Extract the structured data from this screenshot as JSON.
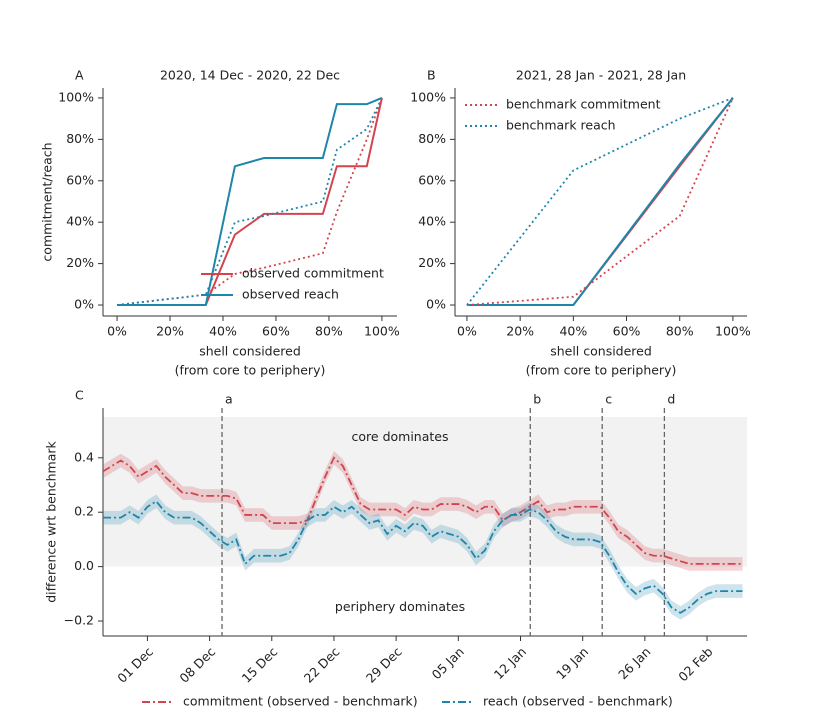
{
  "chart_data": [
    {
      "type": "line",
      "panel": "A",
      "title": "2020, 14 Dec - 2020, 22 Dec",
      "ylabel": "commitment/reach",
      "xlabel": [
        "shell considered",
        "(from core to periphery)"
      ],
      "x": [
        0,
        33.5,
        44.5,
        55.5,
        77.7,
        83,
        94.3,
        100
      ],
      "series": [
        {
          "name": "observed commitment",
          "color": "#d2454f",
          "style": "solid",
          "in_legend": true,
          "values": [
            0,
            0,
            34,
            44,
            44,
            67,
            67,
            100
          ]
        },
        {
          "name": "observed reach",
          "color": "#1f86ab",
          "style": "solid",
          "in_legend": true,
          "values": [
            0,
            0,
            67,
            71,
            71,
            97,
            97,
            100
          ]
        },
        {
          "name": "benchmark commitment",
          "color": "#d2454f",
          "style": "dotted",
          "in_legend": false,
          "values": [
            0,
            5,
            15,
            18,
            25,
            45,
            80,
            100
          ]
        },
        {
          "name": "benchmark reach",
          "color": "#1f86ab",
          "style": "dotted",
          "in_legend": false,
          "values": [
            0,
            5,
            40,
            43,
            50,
            75,
            85,
            100
          ]
        }
      ],
      "xlim": [
        -5.3,
        105.7
      ],
      "ylim": [
        -5.3,
        104.8
      ],
      "xticks": [
        {
          "value": 0,
          "label": "0%"
        },
        {
          "value": 20,
          "label": "20%"
        },
        {
          "value": 40,
          "label": "40%"
        },
        {
          "value": 60,
          "label": "60%"
        },
        {
          "value": 80,
          "label": "80%"
        },
        {
          "value": 100,
          "label": "100%"
        }
      ],
      "yticks": [
        {
          "value": 0,
          "label": "0%"
        },
        {
          "value": 20,
          "label": "20%"
        },
        {
          "value": 40,
          "label": "40%"
        },
        {
          "value": 60,
          "label": "60%"
        },
        {
          "value": 80,
          "label": "80%"
        },
        {
          "value": 100,
          "label": "100%"
        }
      ],
      "legend": "lower right"
    },
    {
      "type": "line",
      "panel": "B",
      "title": "2021, 28 Jan - 2021, 28 Jan",
      "xlabel": [
        "shell considered",
        "(from core to periphery)"
      ],
      "x": [
        0,
        40,
        80,
        100
      ],
      "series": [
        {
          "name": "observed commitment",
          "color": "#d2454f",
          "style": "solid",
          "in_legend": false,
          "values": [
            0,
            0,
            67,
            100
          ]
        },
        {
          "name": "observed reach",
          "color": "#1f86ab",
          "style": "solid",
          "in_legend": false,
          "values": [
            0,
            0,
            68,
            100
          ]
        },
        {
          "name": "benchmark commitment",
          "color": "#d2454f",
          "style": "dotted",
          "in_legend": true,
          "values": [
            0,
            4,
            43,
            100
          ]
        },
        {
          "name": "benchmark reach",
          "color": "#1f86ab",
          "style": "dotted",
          "in_legend": true,
          "values": [
            0,
            65,
            90,
            100
          ]
        }
      ],
      "xlim": [
        -4.5,
        105.3
      ],
      "ylim": [
        -5.3,
        104.8
      ],
      "xticks": [
        {
          "value": 0,
          "label": "0%"
        },
        {
          "value": 20,
          "label": "20%"
        },
        {
          "value": 40,
          "label": "40%"
        },
        {
          "value": 60,
          "label": "60%"
        },
        {
          "value": 80,
          "label": "80%"
        },
        {
          "value": 100,
          "label": "100%"
        }
      ],
      "yticks": [
        {
          "value": 0,
          "label": "0%"
        },
        {
          "value": 20,
          "label": "20%"
        },
        {
          "value": 40,
          "label": "40%"
        },
        {
          "value": 60,
          "label": "60%"
        },
        {
          "value": 80,
          "label": "80%"
        },
        {
          "value": 100,
          "label": "100%"
        }
      ],
      "legend": "upper left"
    },
    {
      "type": "line",
      "panel": "C",
      "ylabel": "difference wrt benchmark",
      "x": [
        0,
        1,
        2,
        3,
        4,
        5,
        6,
        7,
        8,
        9,
        10,
        11,
        12,
        13,
        14,
        15,
        16,
        17,
        18,
        19,
        20,
        21,
        22,
        23,
        24,
        25,
        26,
        27,
        28,
        29,
        30,
        31,
        32,
        33,
        34,
        35,
        36,
        37,
        38,
        39,
        40,
        41,
        42,
        43,
        44,
        45,
        46,
        47,
        48,
        49,
        50,
        51,
        52,
        53,
        54,
        55,
        56,
        57,
        58,
        59,
        60,
        61,
        62,
        63,
        64,
        65,
        66,
        67,
        68,
        69,
        70,
        71,
        72
      ],
      "series": [
        {
          "name": "commitment (observed - benchmark)",
          "color": "#d2454f",
          "style": "dashdot",
          "in_legend": true,
          "band": 0.025,
          "values": [
            0.35,
            0.37,
            0.39,
            0.37,
            0.33,
            0.35,
            0.37,
            0.33,
            0.3,
            0.27,
            0.27,
            0.26,
            0.26,
            0.26,
            0.26,
            0.25,
            0.19,
            0.19,
            0.19,
            0.16,
            0.16,
            0.16,
            0.16,
            0.17,
            0.25,
            0.33,
            0.4,
            0.37,
            0.3,
            0.23,
            0.21,
            0.21,
            0.21,
            0.21,
            0.19,
            0.22,
            0.21,
            0.21,
            0.23,
            0.23,
            0.23,
            0.22,
            0.2,
            0.22,
            0.22,
            0.17,
            0.19,
            0.2,
            0.22,
            0.24,
            0.2,
            0.21,
            0.21,
            0.22,
            0.22,
            0.22,
            0.22,
            0.18,
            0.13,
            0.11,
            0.08,
            0.05,
            0.04,
            0.04,
            0.03,
            0.02,
            0.01,
            0.01,
            0.01,
            0.01,
            0.01,
            0.01,
            0.01
          ]
        },
        {
          "name": "reach (observed - benchmark)",
          "color": "#1f86ab",
          "style": "dashdot",
          "in_legend": true,
          "band": 0.025,
          "values": [
            0.18,
            0.18,
            0.18,
            0.2,
            0.18,
            0.22,
            0.24,
            0.2,
            0.18,
            0.18,
            0.18,
            0.16,
            0.13,
            0.1,
            0.08,
            0.1,
            0.01,
            0.04,
            0.04,
            0.04,
            0.04,
            0.05,
            0.1,
            0.17,
            0.19,
            0.19,
            0.22,
            0.2,
            0.22,
            0.19,
            0.16,
            0.17,
            0.12,
            0.15,
            0.13,
            0.16,
            0.15,
            0.11,
            0.13,
            0.12,
            0.11,
            0.08,
            0.03,
            0.06,
            0.13,
            0.17,
            0.19,
            0.19,
            0.21,
            0.2,
            0.17,
            0.13,
            0.11,
            0.1,
            0.1,
            0.1,
            0.09,
            0.04,
            -0.02,
            -0.07,
            -0.1,
            -0.08,
            -0.07,
            -0.1,
            -0.15,
            -0.17,
            -0.15,
            -0.12,
            -0.1,
            -0.09,
            -0.09,
            -0.09,
            -0.09
          ]
        }
      ],
      "xlim": [
        0,
        72.5
      ],
      "ylim": [
        -0.255,
        0.583
      ],
      "xticks": [
        {
          "value": 5,
          "label": "01 Dec"
        },
        {
          "value": 12,
          "label": "08 Dec"
        },
        {
          "value": 19,
          "label": "15 Dec"
        },
        {
          "value": 26,
          "label": "22 Dec"
        },
        {
          "value": 33,
          "label": "29 Dec"
        },
        {
          "value": 40,
          "label": "05 Jan"
        },
        {
          "value": 47,
          "label": "12 Jan"
        },
        {
          "value": 54,
          "label": "19 Jan"
        },
        {
          "value": 61,
          "label": "26 Jan"
        },
        {
          "value": 68,
          "label": "02 Feb"
        }
      ],
      "yticks": [
        0.4,
        0.2,
        {
          "value": 0,
          "label": "0.0"
        },
        {
          "value": -0.2,
          "label": "−0.2"
        }
      ],
      "shade_ylim": [
        0,
        0.55
      ],
      "annotations": [
        "core dominates",
        "periphery dominates"
      ],
      "events": [
        {
          "label": "a",
          "x": 13.4
        },
        {
          "label": "b",
          "x": 48.1
        },
        {
          "label": "c",
          "x": 56.2
        },
        {
          "label": "d",
          "x": 63.2
        }
      ],
      "legend": "below"
    }
  ]
}
